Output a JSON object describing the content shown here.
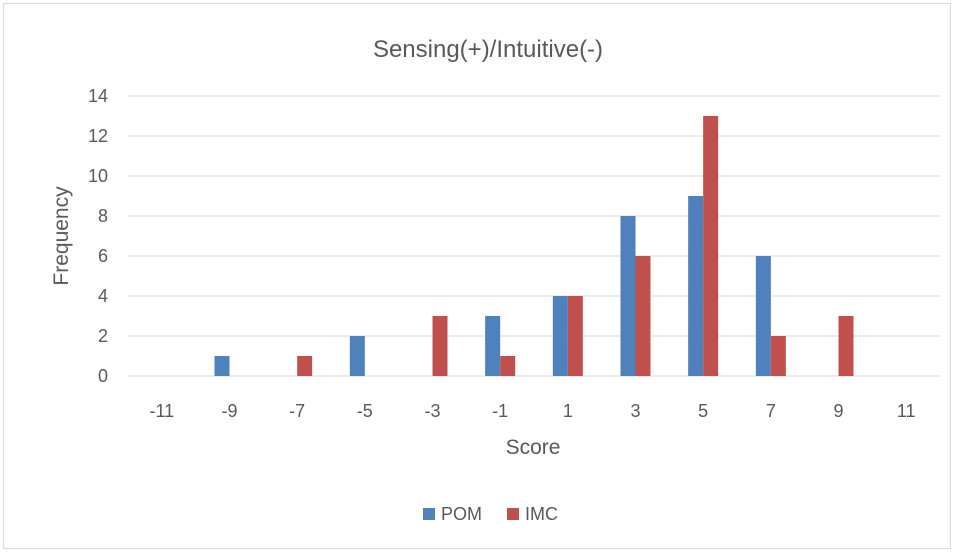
{
  "chart_data": {
    "type": "bar",
    "title": "Sensing(+)/Intuitive(-)",
    "xlabel": "Score",
    "ylabel": "Frequency",
    "categories": [
      "-11",
      "-9",
      "-7",
      "-5",
      "-3",
      "-1",
      "1",
      "3",
      "5",
      "7",
      "9",
      "11"
    ],
    "ylim": [
      0,
      14
    ],
    "yticks": [
      0,
      2,
      4,
      6,
      8,
      10,
      12,
      14
    ],
    "grid": true,
    "legend": "bottom",
    "series": [
      {
        "name": "POM",
        "color": "#4f81bd",
        "values": [
          0,
          1,
          0,
          2,
          0,
          3,
          4,
          8,
          9,
          6,
          0,
          0
        ]
      },
      {
        "name": "IMC",
        "color": "#c0504d",
        "values": [
          0,
          0,
          1,
          0,
          3,
          1,
          4,
          6,
          13,
          2,
          3,
          0
        ]
      }
    ]
  }
}
